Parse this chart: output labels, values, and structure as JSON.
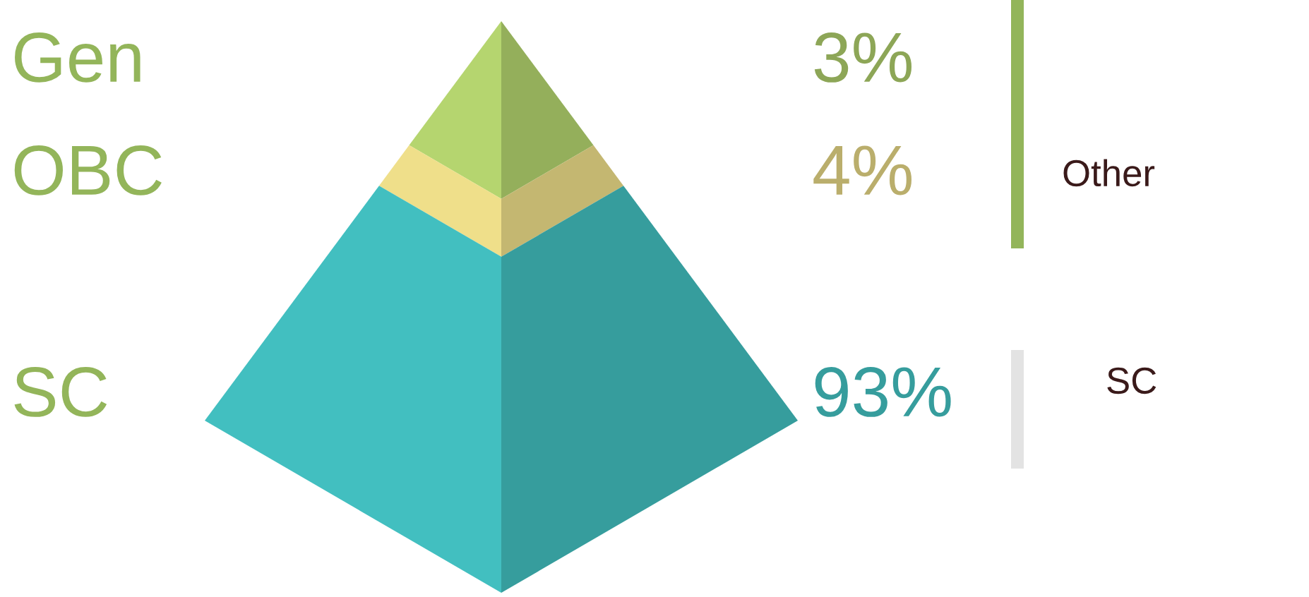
{
  "chart_data": {
    "type": "other",
    "categories": [
      "Gen",
      "OBC",
      "SC"
    ],
    "values": [
      3,
      4,
      93
    ],
    "value_labels": [
      "3%",
      "4%",
      "93%"
    ],
    "colors": [
      "#b5d56f",
      "#efdf8a",
      "#42bfc0"
    ],
    "annotations": [
      "Other",
      "SC"
    ]
  }
}
